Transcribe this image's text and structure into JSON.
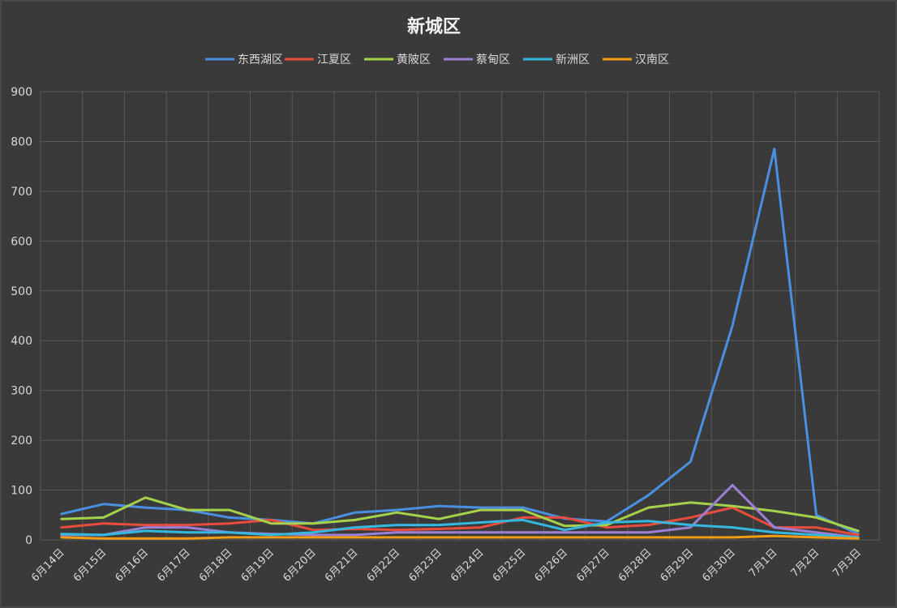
{
  "chart_data": {
    "type": "line",
    "title": "新城区",
    "xlabel": "",
    "ylabel": "",
    "ylim": [
      0,
      900
    ],
    "yticks": [
      0,
      100,
      200,
      300,
      400,
      500,
      600,
      700,
      800,
      900
    ],
    "grid": true,
    "legend_position": "top",
    "categories": [
      "6月14日",
      "6月15日",
      "6月16日",
      "6月17日",
      "6月18日",
      "6月19日",
      "6月20日",
      "6月21日",
      "6月22日",
      "6月23日",
      "6月24日",
      "6月25日",
      "6月26日",
      "6月27日",
      "6月28日",
      "6月29日",
      "6月30日",
      "7月1日",
      "7月2日",
      "7月3日"
    ],
    "series": [
      {
        "name": "东西湖区",
        "color": "#4a90e2",
        "values": [
          52,
          72,
          65,
          60,
          45,
          40,
          33,
          55,
          60,
          68,
          65,
          65,
          43,
          37,
          90,
          157,
          430,
          785,
          50,
          12
        ]
      },
      {
        "name": "江夏区",
        "color": "#e74c3c",
        "values": [
          25,
          33,
          30,
          30,
          33,
          40,
          20,
          22,
          20,
          22,
          25,
          45,
          45,
          25,
          30,
          45,
          65,
          25,
          25,
          10
        ]
      },
      {
        "name": "黄陂区",
        "color": "#a6d14a",
        "values": [
          42,
          45,
          85,
          60,
          60,
          33,
          33,
          40,
          55,
          42,
          60,
          60,
          28,
          30,
          65,
          75,
          68,
          58,
          45,
          18
        ]
      },
      {
        "name": "蔡甸区",
        "color": "#9b7fd4",
        "values": [
          10,
          10,
          25,
          25,
          15,
          12,
          10,
          10,
          15,
          15,
          15,
          15,
          15,
          15,
          15,
          25,
          110,
          25,
          15,
          5
        ]
      },
      {
        "name": "新洲区",
        "color": "#35b8e0",
        "values": [
          12,
          10,
          18,
          15,
          15,
          10,
          15,
          25,
          30,
          30,
          35,
          40,
          20,
          35,
          38,
          30,
          25,
          15,
          10,
          5
        ]
      },
      {
        "name": "汉南区",
        "color": "#f39c12",
        "values": [
          5,
          3,
          3,
          3,
          5,
          5,
          5,
          5,
          5,
          5,
          5,
          5,
          5,
          5,
          5,
          5,
          5,
          8,
          5,
          3
        ]
      }
    ]
  }
}
